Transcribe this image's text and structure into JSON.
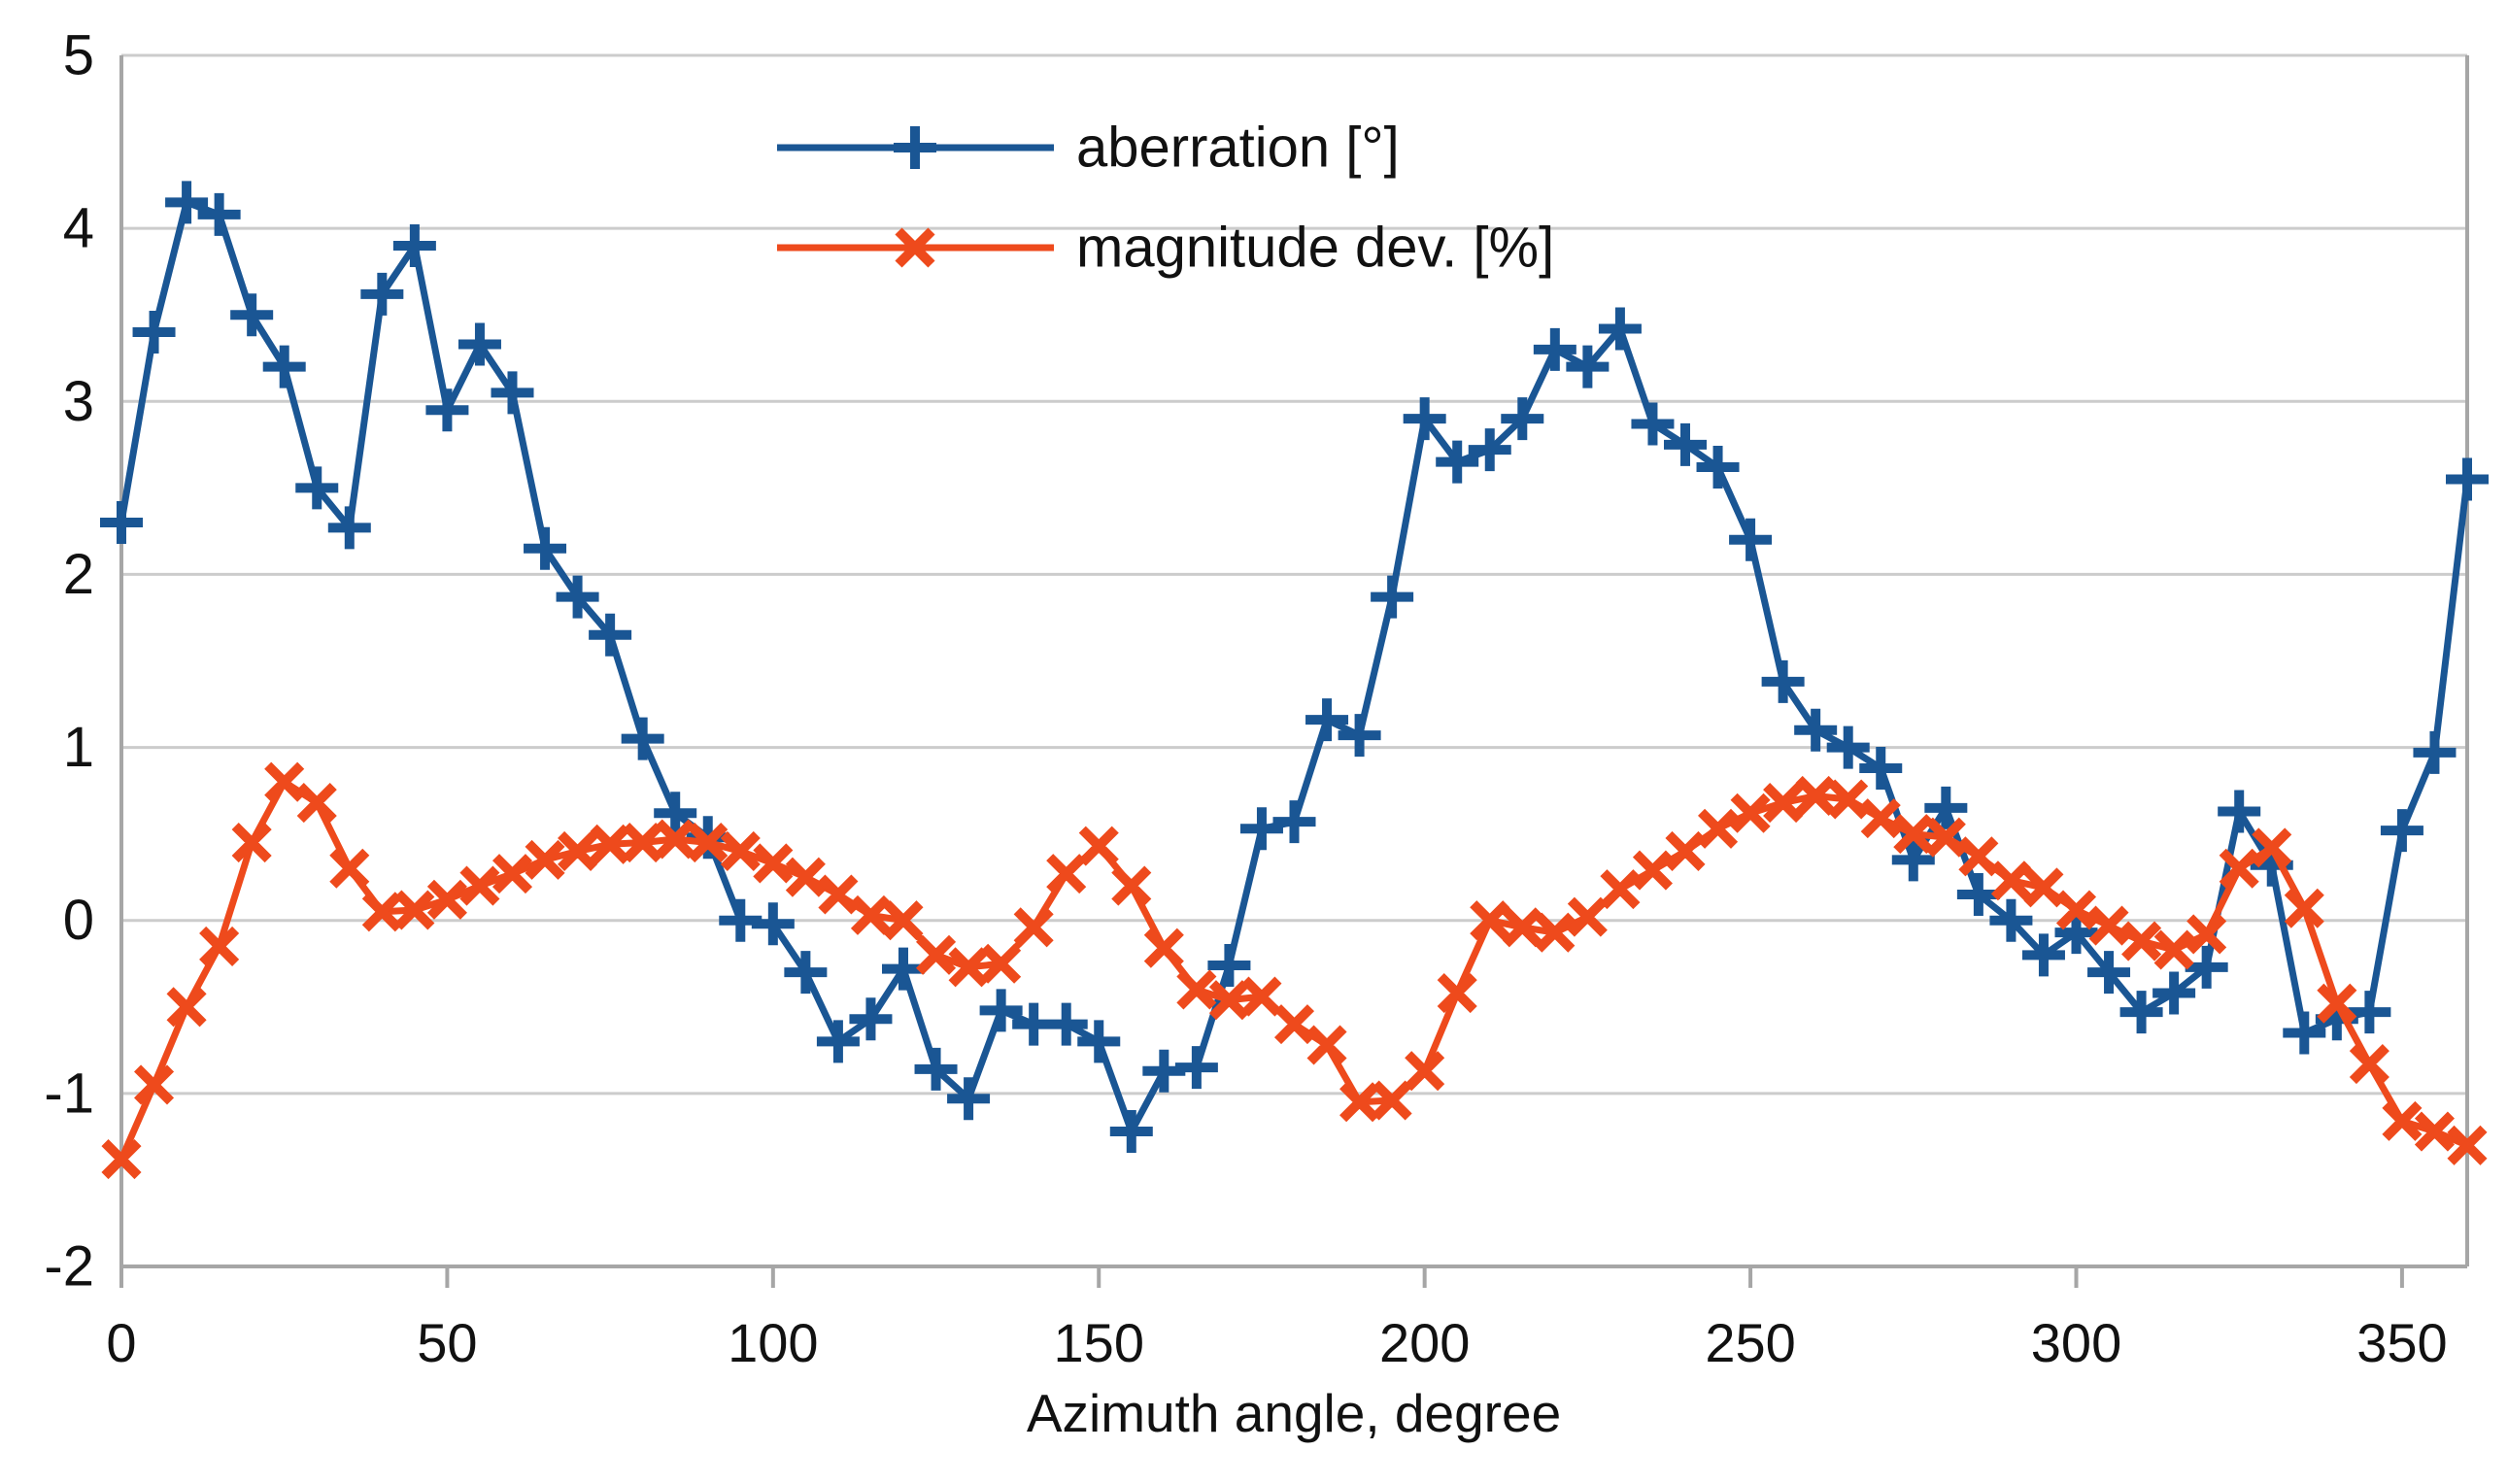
{
  "chart_data": {
    "type": "line",
    "title": "",
    "xlabel": "Azimuth angle, degree",
    "ylabel": "",
    "xlim": [
      0,
      360
    ],
    "ylim": [
      -2,
      5
    ],
    "x_ticks": [
      0,
      50,
      100,
      150,
      200,
      250,
      300,
      350
    ],
    "y_ticks": [
      5,
      4,
      3,
      2,
      1,
      0,
      -1,
      -2
    ],
    "grid": "horizontal",
    "legend_position": "top-center-inside",
    "colors": {
      "gridline": "#cccccc",
      "axis": "#a6a6a6",
      "text": "#111111",
      "background": "#ffffff"
    },
    "x": [
      0,
      5,
      10,
      15,
      20,
      25,
      30,
      35,
      40,
      45,
      50,
      55,
      60,
      65,
      70,
      75,
      80,
      85,
      90,
      95,
      100,
      105,
      110,
      115,
      120,
      125,
      130,
      135,
      140,
      145,
      150,
      155,
      160,
      165,
      170,
      175,
      180,
      185,
      190,
      195,
      200,
      205,
      210,
      215,
      220,
      225,
      230,
      235,
      240,
      245,
      250,
      255,
      260,
      265,
      270,
      275,
      280,
      285,
      290,
      295,
      300,
      305,
      310,
      315,
      320,
      325,
      330,
      335,
      340,
      345,
      350,
      355,
      360
    ],
    "series": [
      {
        "name": "aberration [°]",
        "color": "#1a5694",
        "marker": "plus",
        "values": [
          2.3,
          3.4,
          4.15,
          4.08,
          3.5,
          3.2,
          2.5,
          2.27,
          3.62,
          3.9,
          2.95,
          3.33,
          3.05,
          2.15,
          1.87,
          1.65,
          1.05,
          0.62,
          0.48,
          0.0,
          -0.02,
          -0.3,
          -0.7,
          -0.57,
          -0.28,
          -0.86,
          -1.03,
          -0.52,
          -0.6,
          -0.6,
          -0.7,
          -1.22,
          -0.87,
          -0.85,
          -0.26,
          0.53,
          0.57,
          1.16,
          1.07,
          1.87,
          2.9,
          2.65,
          2.72,
          2.9,
          3.3,
          3.2,
          3.42,
          2.87,
          2.75,
          2.62,
          2.2,
          1.38,
          1.1,
          1.0,
          0.88,
          0.35,
          0.65,
          0.15,
          0.0,
          -0.2,
          -0.07,
          -0.3,
          -0.53,
          -0.42,
          -0.27,
          0.63,
          0.32,
          -0.65,
          -0.57,
          -0.53,
          0.52,
          0.97,
          2.55
        ]
      },
      {
        "name": "magnitude dev. [%]",
        "color": "#ee4a1c",
        "marker": "x",
        "values": [
          -1.38,
          -0.95,
          -0.5,
          -0.15,
          0.45,
          0.8,
          0.68,
          0.3,
          0.05,
          0.06,
          0.12,
          0.2,
          0.27,
          0.35,
          0.4,
          0.44,
          0.45,
          0.47,
          0.45,
          0.4,
          0.33,
          0.25,
          0.15,
          0.03,
          0.0,
          -0.2,
          -0.27,
          -0.25,
          -0.04,
          0.27,
          0.43,
          0.2,
          -0.16,
          -0.4,
          -0.46,
          -0.44,
          -0.6,
          -0.72,
          -1.05,
          -1.04,
          -0.87,
          -0.42,
          0.0,
          -0.04,
          -0.07,
          0.02,
          0.18,
          0.29,
          0.4,
          0.53,
          0.62,
          0.68,
          0.72,
          0.7,
          0.59,
          0.5,
          0.48,
          0.37,
          0.23,
          0.19,
          0.06,
          -0.03,
          -0.12,
          -0.17,
          -0.08,
          0.3,
          0.42,
          0.07,
          -0.48,
          -0.83,
          -1.16,
          -1.22,
          -1.3
        ]
      }
    ]
  }
}
